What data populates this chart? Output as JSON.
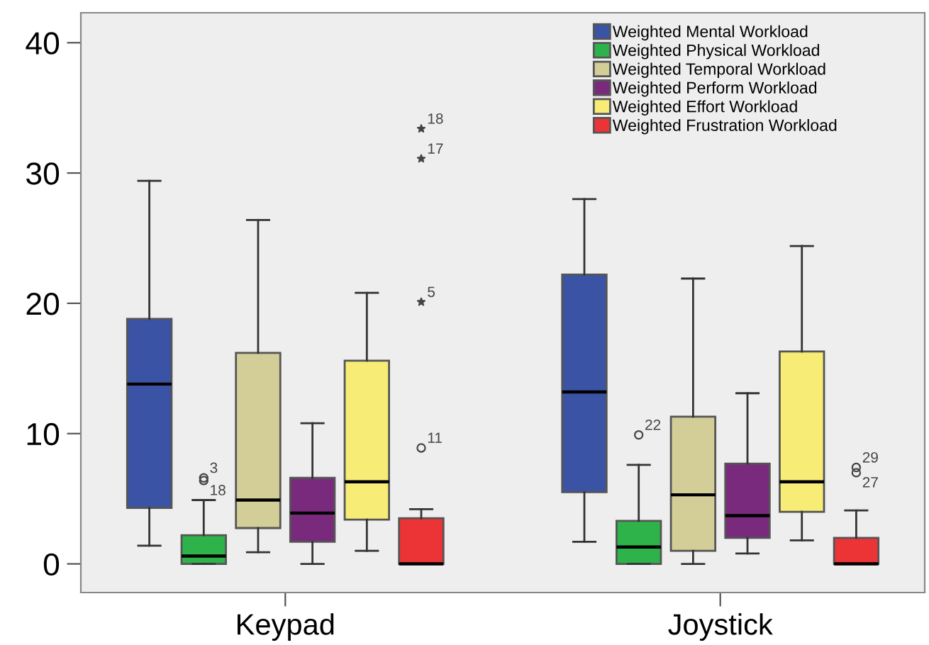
{
  "chart_data": {
    "type": "box",
    "categories": [
      "Keypad",
      "Joystick"
    ],
    "series": [
      {
        "name": "Weighted Mental Workload",
        "color": "#3a53a4",
        "boxes": [
          {
            "low": 1.4,
            "q1": 4.3,
            "median": 13.8,
            "q3": 18.8,
            "high": 29.4
          },
          {
            "low": 1.7,
            "q1": 5.5,
            "median": 13.2,
            "q3": 22.2,
            "high": 28.0
          }
        ]
      },
      {
        "name": "Weighted Physical Workload",
        "color": "#2db34a",
        "boxes": [
          {
            "low": 0,
            "q1": 0,
            "median": 0.6,
            "q3": 2.2,
            "high": 4.9,
            "outliers": [
              6.6,
              6.4
            ]
          },
          {
            "low": 0,
            "q1": 0,
            "median": 1.3,
            "q3": 3.3,
            "high": 7.6,
            "outliers": [
              9.9
            ]
          }
        ]
      },
      {
        "name": "Weighted Temporal Workload",
        "color": "#d3ce97",
        "boxes": [
          {
            "low": 0.9,
            "q1": 2.75,
            "median": 4.9,
            "q3": 16.2,
            "high": 26.4
          },
          {
            "low": 0,
            "q1": 1.0,
            "median": 5.3,
            "q3": 11.3,
            "high": 21.9
          }
        ]
      },
      {
        "name": "Weighted Perform Workload",
        "color": "#7a2a7c",
        "boxes": [
          {
            "low": 0,
            "q1": 1.7,
            "median": 3.9,
            "q3": 6.6,
            "high": 10.8
          },
          {
            "low": 0.8,
            "q1": 2.0,
            "median": 3.7,
            "q3": 7.7,
            "high": 13.1
          }
        ]
      },
      {
        "name": "Weighted Effort Workload",
        "color": "#f7ec76",
        "boxes": [
          {
            "low": 1.0,
            "q1": 3.4,
            "median": 6.3,
            "q3": 15.6,
            "high": 20.8
          },
          {
            "low": 1.8,
            "q1": 4.0,
            "median": 6.3,
            "q3": 16.3,
            "high": 24.4
          }
        ]
      },
      {
        "name": "Weighted Frustration Workload",
        "color": "#ec3336",
        "boxes": [
          {
            "low": 0,
            "q1": 0,
            "median": 0,
            "q3": 3.5,
            "high": 4.2,
            "outliers": [
              8.9,
              20.1,
              31.1,
              33.4
            ]
          },
          {
            "low": 0,
            "q1": 0,
            "median": 0,
            "q3": 2.0,
            "high": 4.1,
            "outliers": [
              7.4,
              7.0
            ]
          }
        ]
      }
    ],
    "annotations": [
      "3",
      "18",
      "22",
      "11",
      "5",
      "17",
      "18",
      "29",
      "27"
    ],
    "ylim": [
      -2.2,
      42.3
    ],
    "yticks": [
      0,
      10,
      20,
      30,
      40
    ],
    "grid": false,
    "legend": "top right"
  }
}
